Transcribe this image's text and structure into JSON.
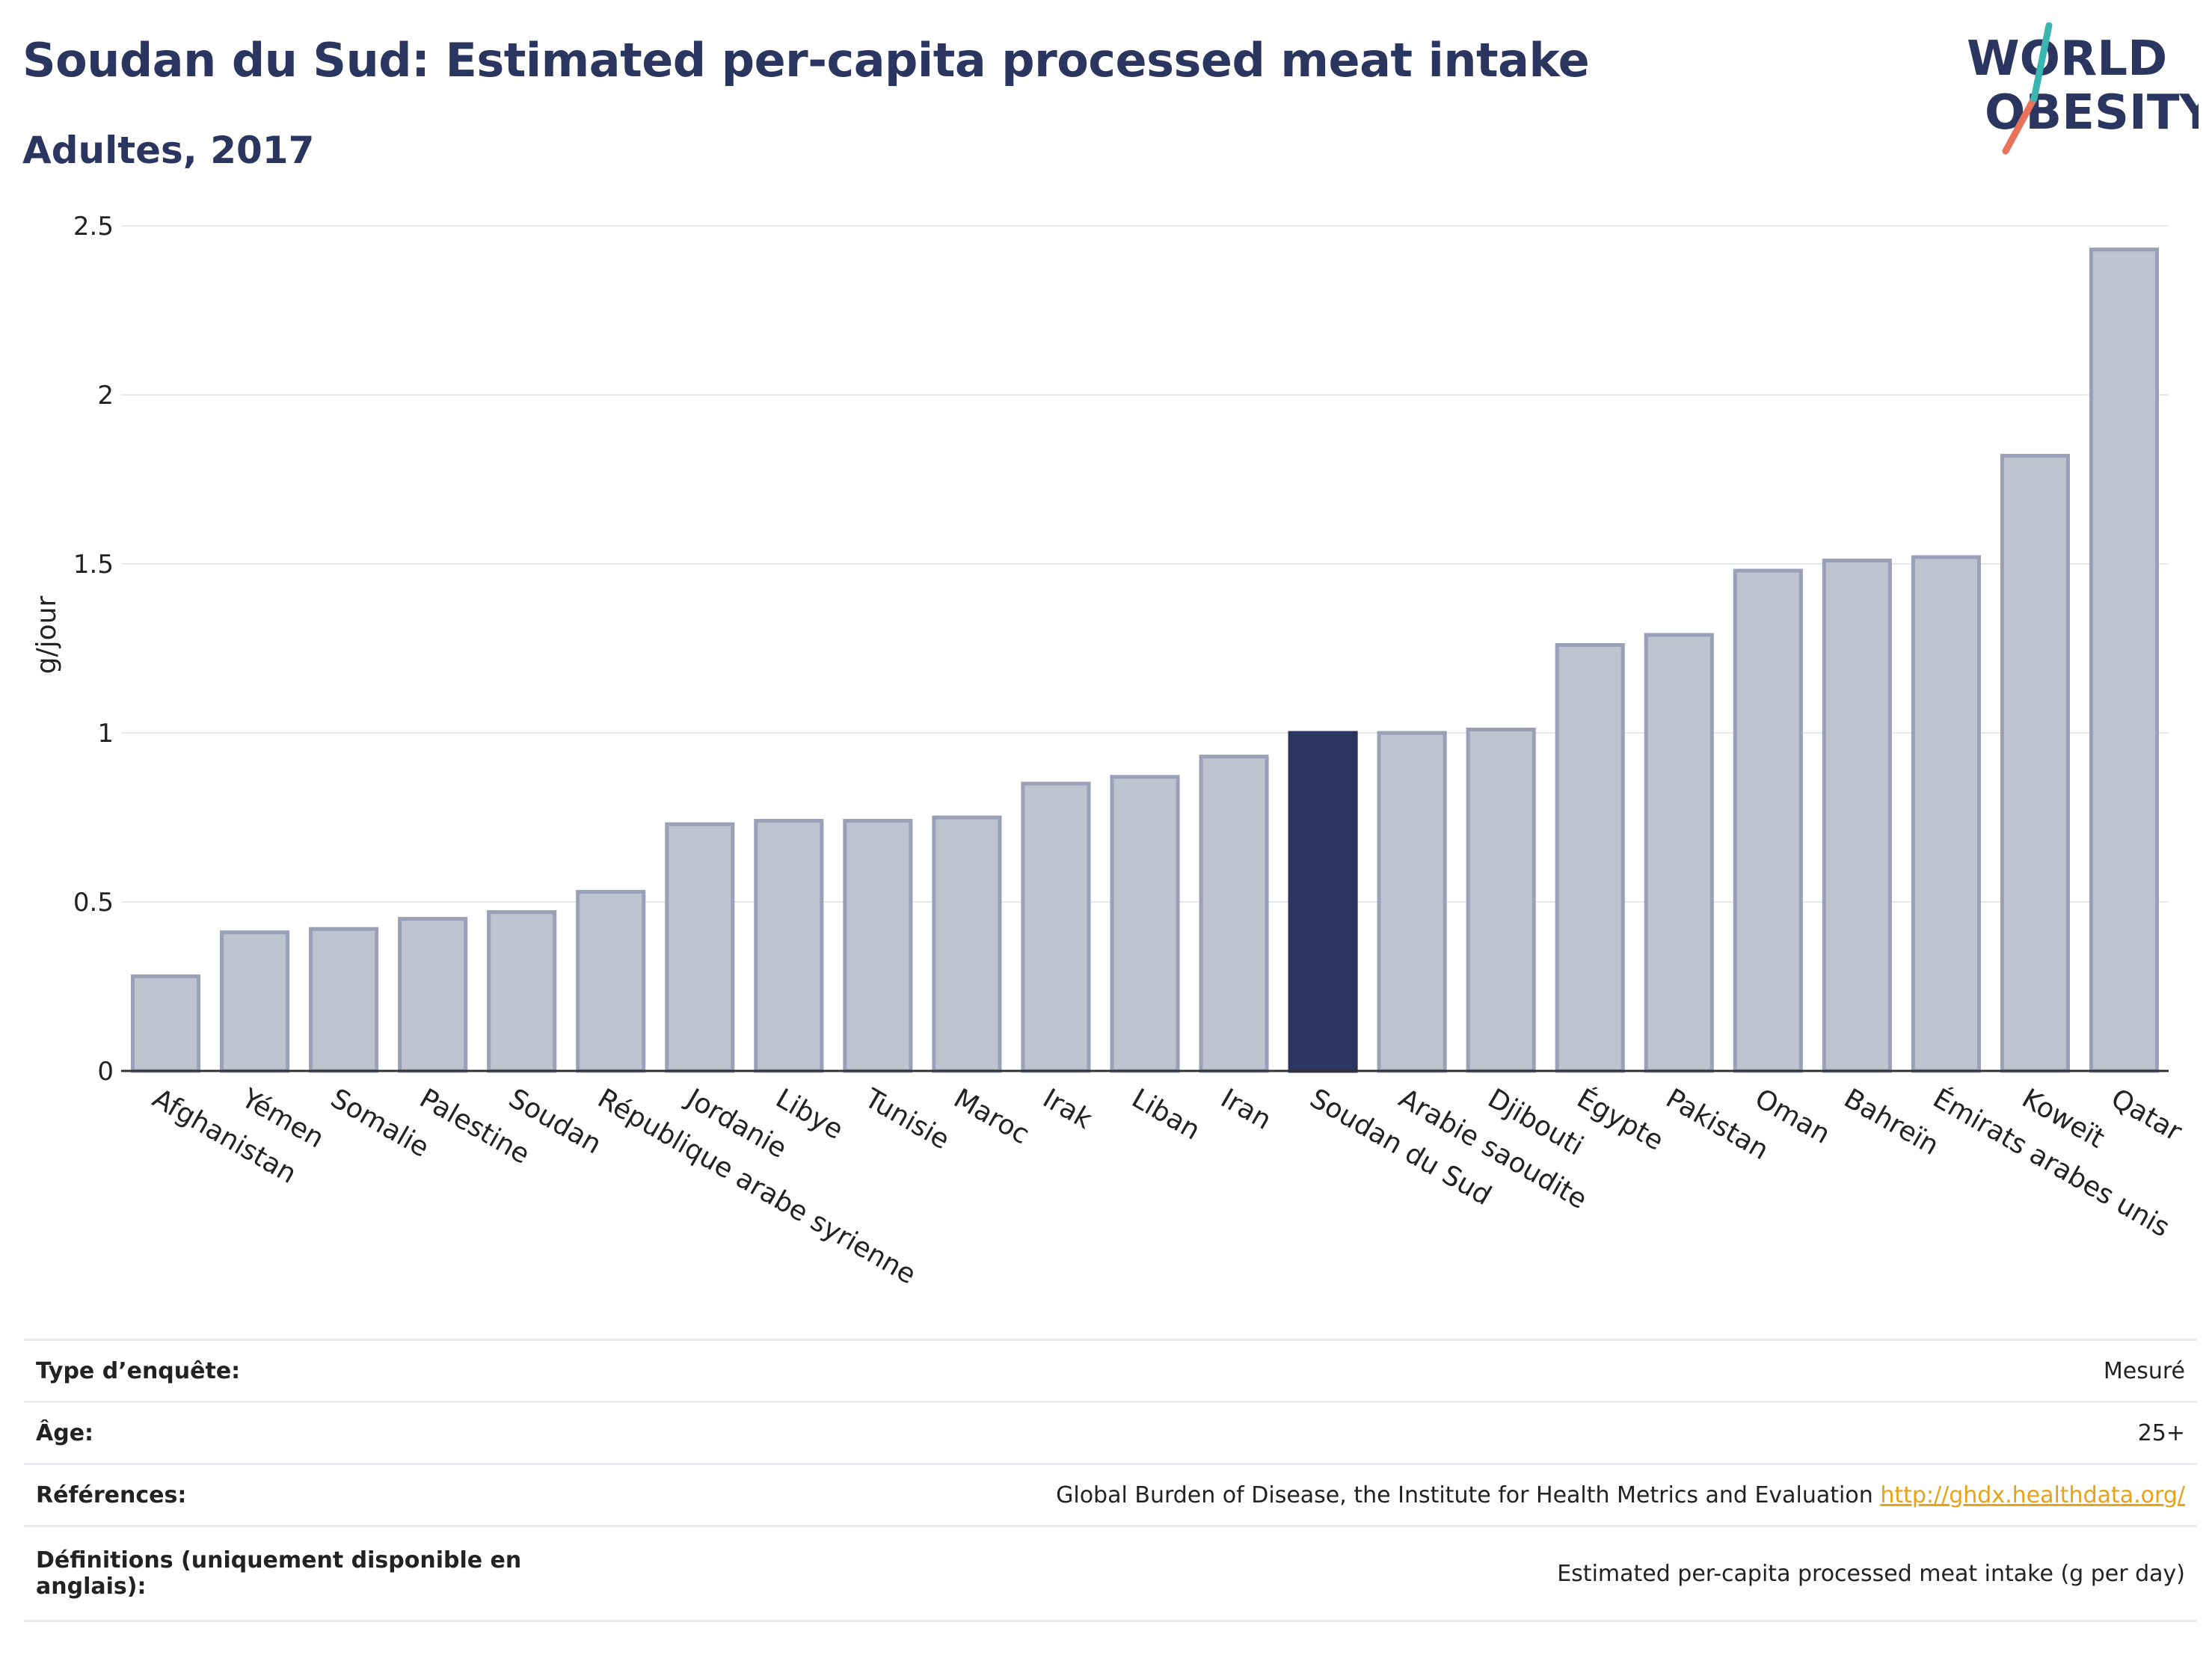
{
  "title": "Soudan du Sud: Estimated per-capita processed meat intake",
  "subtitle": "Adultes, 2017",
  "logo": {
    "line1": "WORLD",
    "line2": "OBESITY"
  },
  "colors": {
    "highlight": "#2a3560",
    "bar_fill": "#bfc3d0",
    "bar_stroke": "#9aa0b8",
    "title": "#2a3560",
    "link": "#e8a21a"
  },
  "chart_data": {
    "type": "bar",
    "ylabel": "g/jour",
    "ylim": [
      0,
      2.5
    ],
    "yticks": [
      "0",
      "0.5",
      "1",
      "1.5",
      "2",
      "2.5"
    ],
    "highlight": "Soudan du Sud",
    "categories": [
      "Afghanistan",
      "Yémen",
      "Somalie",
      "Palestine",
      "Soudan",
      "République arabe syrienne",
      "Jordanie",
      "Libye",
      "Tunisie",
      "Maroc",
      "Irak",
      "Liban",
      "Iran",
      "Soudan du Sud",
      "Arabie saoudite",
      "Djibouti",
      "Égypte",
      "Pakistan",
      "Oman",
      "Bahreïn",
      "Émirats arabes unis",
      "Koweït",
      "Qatar"
    ],
    "values": [
      0.28,
      0.41,
      0.42,
      0.45,
      0.47,
      0.53,
      0.73,
      0.74,
      0.74,
      0.75,
      0.85,
      0.87,
      0.93,
      1.0,
      1.0,
      1.01,
      1.26,
      1.29,
      1.48,
      1.51,
      1.52,
      1.82,
      2.43
    ],
    "grid": true
  },
  "info": {
    "survey_type": {
      "label": "Type d’enquête:",
      "value": "Mesuré"
    },
    "age": {
      "label": "Âge:",
      "value": "25+"
    },
    "references": {
      "label": "Références:",
      "value": "Global Burden of Disease, the Institute for Health Metrics and Evaluation",
      "link": "http://ghdx.healthdata.org/"
    },
    "definitions": {
      "label": "Définitions (uniquement disponible en anglais):",
      "value": "Estimated per-capita processed meat intake (g per day)"
    }
  }
}
